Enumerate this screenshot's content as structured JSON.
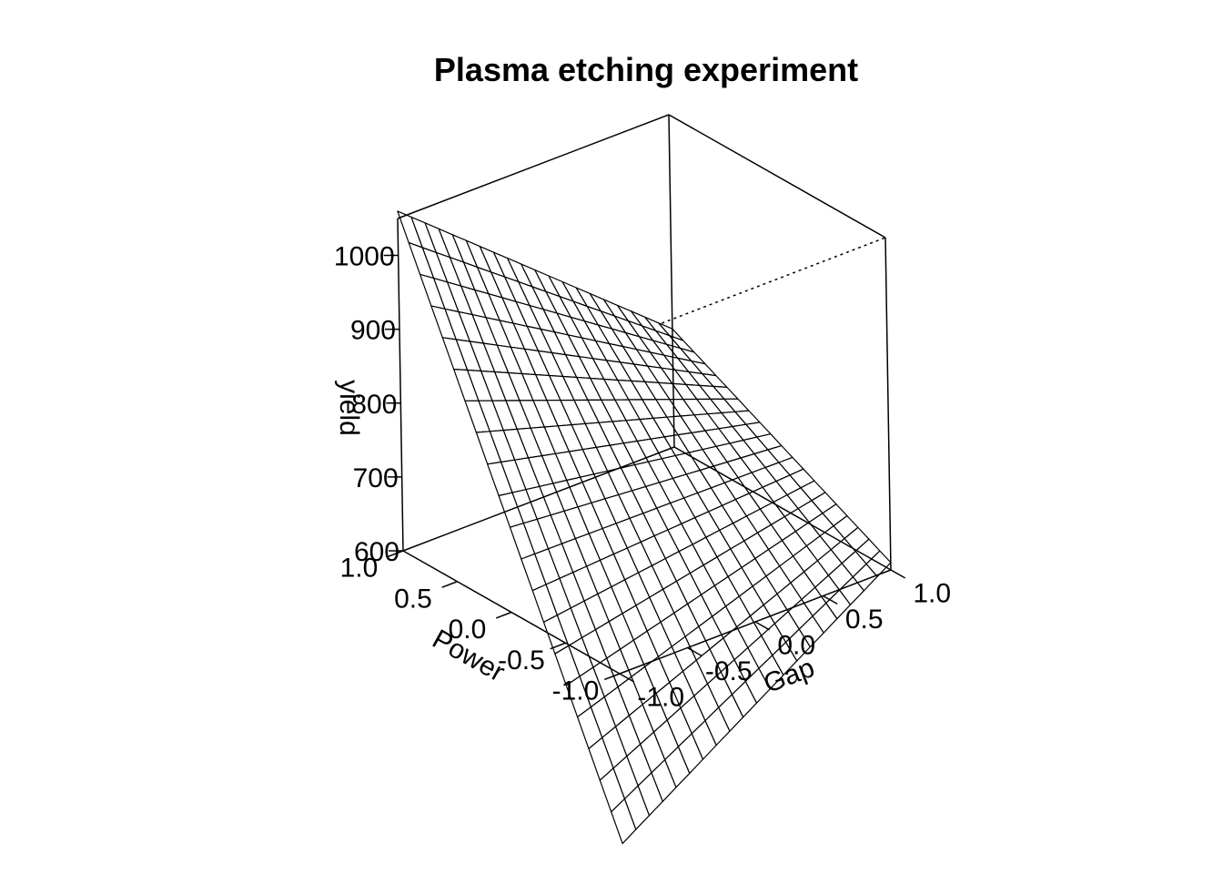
{
  "chart_data": {
    "type": "surface",
    "title": "Plasma etching experiment",
    "axes": {
      "x": {
        "label": "Gap",
        "range": [
          -1,
          1
        ],
        "ticks": [
          "-1.0",
          "-0.5",
          "0.0",
          "0.5",
          "1.0"
        ],
        "tick_values": [
          -1,
          -0.5,
          0,
          0.5,
          1
        ]
      },
      "y": {
        "label": "Power",
        "range": [
          -1,
          1
        ],
        "ticks": [
          "-1.0",
          "-0.5",
          "0.0",
          "0.5",
          "1.0"
        ],
        "tick_values": [
          -1,
          -0.5,
          0,
          0.5,
          1
        ]
      },
      "z": {
        "label": "yield",
        "range": [
          600,
          1050
        ],
        "ticks": [
          "600",
          "700",
          "800",
          "900",
          "1000"
        ],
        "tick_values": [
          600,
          700,
          800,
          900,
          1000
        ]
      }
    },
    "surface_corners": [
      {
        "gap": -1,
        "power": -1,
        "yield": 370
      },
      {
        "gap": 1,
        "power": -1,
        "yield": 610
      },
      {
        "gap": -1,
        "power": 1,
        "yield": 1060
      },
      {
        "gap": 1,
        "power": 1,
        "yield": 760
      }
    ],
    "grid_lines_per_axis": 21,
    "mesh": true,
    "box": true,
    "colors": {
      "line": "#000000",
      "background": "#ffffff",
      "surface_fill": "#ffffff"
    }
  }
}
